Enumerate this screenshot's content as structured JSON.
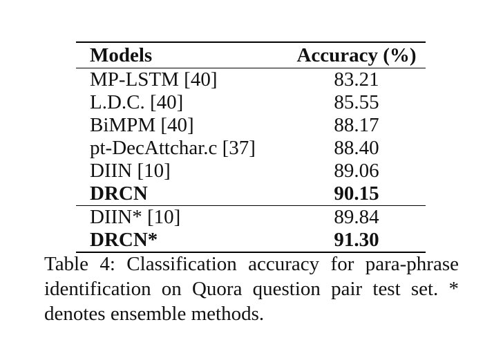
{
  "table": {
    "headers": {
      "model": "Models",
      "accuracy": "Accuracy (%)"
    },
    "group1": [
      {
        "model": "MP-LSTM [40]",
        "accuracy": "83.21",
        "bold": false
      },
      {
        "model": "L.D.C. [40]",
        "accuracy": "85.55",
        "bold": false
      },
      {
        "model": "BiMPM [40]",
        "accuracy": "88.17",
        "bold": false
      },
      {
        "model": "pt-DecAttchar.c [37]",
        "accuracy": "88.40",
        "bold": false
      },
      {
        "model": "DIIN [10]",
        "accuracy": "89.06",
        "bold": false
      },
      {
        "model": "DRCN",
        "accuracy": "90.15",
        "bold": true
      }
    ],
    "group2": [
      {
        "model": "DIIN* [10]",
        "accuracy": "89.84",
        "bold": false
      },
      {
        "model": "DRCN*",
        "accuracy": "91.30",
        "bold": true
      }
    ]
  },
  "caption": {
    "text": "Table 4: Classification accuracy for para-phrase identification on Quora question pair test set. * denotes ensemble methods."
  }
}
